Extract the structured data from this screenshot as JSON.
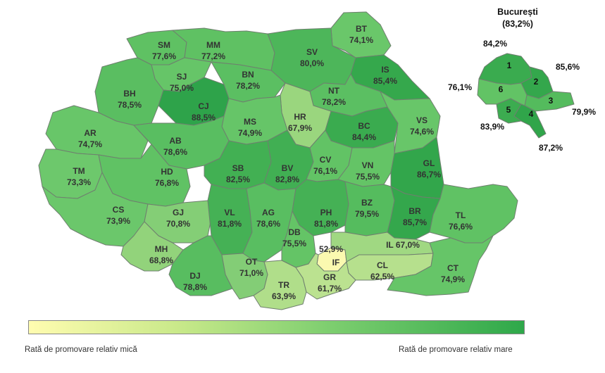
{
  "counties": [
    {
      "code": "SM",
      "value": "77,6%",
      "color": "#5fc163"
    },
    {
      "code": "MM",
      "value": "77,2%",
      "color": "#5fc163"
    },
    {
      "code": "BT",
      "value": "74,1%",
      "color": "#6ac76a"
    },
    {
      "code": "SV",
      "value": "80,0%",
      "color": "#4db65a"
    },
    {
      "code": "IS",
      "value": "85,4%",
      "color": "#35a84c"
    },
    {
      "code": "SJ",
      "value": "75,0%",
      "color": "#66c568"
    },
    {
      "code": "BN",
      "value": "78,2%",
      "color": "#5bbf62"
    },
    {
      "code": "BH",
      "value": "78,5%",
      "color": "#5abe61"
    },
    {
      "code": "CJ",
      "value": "88,5%",
      "color": "#2ea34a"
    },
    {
      "code": "NT",
      "value": "78,2%",
      "color": "#5bbf62"
    },
    {
      "code": "HR",
      "value": "67,9%",
      "color": "#9ad67e"
    },
    {
      "code": "MS",
      "value": "74,9%",
      "color": "#66c568"
    },
    {
      "code": "BC",
      "value": "84,4%",
      "color": "#3aab4f"
    },
    {
      "code": "VS",
      "value": "74,6%",
      "color": "#68c669"
    },
    {
      "code": "AR",
      "value": "74,7%",
      "color": "#68c669"
    },
    {
      "code": "AB",
      "value": "78,6%",
      "color": "#59be61"
    },
    {
      "code": "TM",
      "value": "73,3%",
      "color": "#6dc86c"
    },
    {
      "code": "HD",
      "value": "76,8%",
      "color": "#60c264"
    },
    {
      "code": "SB",
      "value": "82,5%",
      "color": "#42b053"
    },
    {
      "code": "BV",
      "value": "82,8%",
      "color": "#41af53"
    },
    {
      "code": "CV",
      "value": "76,1%",
      "color": "#62c365"
    },
    {
      "code": "VN",
      "value": "75,5%",
      "color": "#64c466"
    },
    {
      "code": "GL",
      "value": "86,7%",
      "color": "#32a64b"
    },
    {
      "code": "CS",
      "value": "73,9%",
      "color": "#6bc76b"
    },
    {
      "code": "GJ",
      "value": "70,8%",
      "color": "#84ce76"
    },
    {
      "code": "VL",
      "value": "81,8%",
      "color": "#45b155"
    },
    {
      "code": "AG",
      "value": "78,6%",
      "color": "#59be61"
    },
    {
      "code": "PH",
      "value": "81,8%",
      "color": "#45b155"
    },
    {
      "code": "BZ",
      "value": "79,5%",
      "color": "#55bc5e"
    },
    {
      "code": "BR",
      "value": "85,7%",
      "color": "#34a74c"
    },
    {
      "code": "TL",
      "value": "76,6%",
      "color": "#60c264"
    },
    {
      "code": "MH",
      "value": "68,8%",
      "color": "#92d37b"
    },
    {
      "code": "DB",
      "value": "75,5%",
      "color": "#64c466"
    },
    {
      "code": "DJ",
      "value": "78,8%",
      "color": "#58bd60"
    },
    {
      "code": "OT",
      "value": "71,0%",
      "color": "#83cd76"
    },
    {
      "code": "IF",
      "value": "52,9%",
      "color": "#fbf9b0"
    },
    {
      "code": "IL",
      "value": "67,0%",
      "color": "#a0d882"
    },
    {
      "code": "CL",
      "value": "62,5%",
      "color": "#b6e08d"
    },
    {
      "code": "TR",
      "value": "63,9%",
      "color": "#b0de8a"
    },
    {
      "code": "GR",
      "value": "61,7%",
      "color": "#bbe290"
    },
    {
      "code": "CT",
      "value": "74,9%",
      "color": "#66c568"
    }
  ],
  "bucuresti": {
    "title": "București",
    "value": "(83,2%)",
    "sectors": [
      {
        "label": "1",
        "value": "84,2%",
        "color": "#3aab4f"
      },
      {
        "label": "2",
        "value": "85,6%",
        "color": "#34a74c"
      },
      {
        "label": "3",
        "value": "79,9%",
        "color": "#54bb5d"
      },
      {
        "label": "4",
        "value": "87,2%",
        "color": "#30a54a"
      },
      {
        "label": "5",
        "value": "83,9%",
        "color": "#3cac50"
      },
      {
        "label": "6",
        "value": "76,1%",
        "color": "#62c365"
      }
    ]
  },
  "legend": {
    "low_label": "Rată de promovare relativ mică",
    "high_label": "Rată de promovare relativ mare",
    "low_color": "#fffcb0",
    "high_color": "#2ea84a"
  }
}
